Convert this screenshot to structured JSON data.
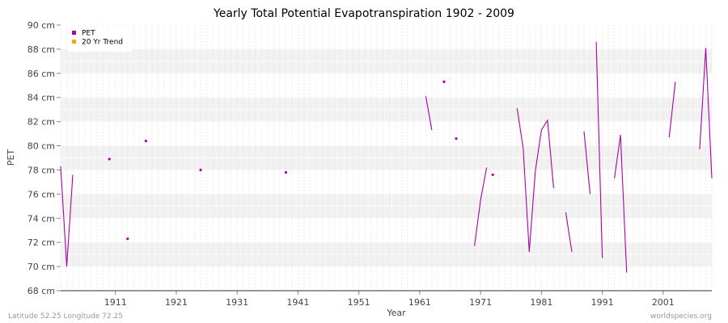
{
  "chart_data": {
    "type": "line",
    "title": "Yearly Total Potential Evapotranspiration 1902 - 2009",
    "xlabel": "Year",
    "ylabel": "PET",
    "xlim": [
      1902,
      2009
    ],
    "ylim": [
      68,
      90
    ],
    "x_ticks": [
      1911,
      1921,
      1931,
      1941,
      1951,
      1961,
      1971,
      1981,
      1991,
      2001
    ],
    "y_ticks": [
      {
        "value": 68,
        "label": "68 cm"
      },
      {
        "value": 70,
        "label": "70 cm"
      },
      {
        "value": 72,
        "label": "72 cm"
      },
      {
        "value": 74,
        "label": "74 cm"
      },
      {
        "value": 76,
        "label": "76 cm"
      },
      {
        "value": 78,
        "label": "78 cm"
      },
      {
        "value": 80,
        "label": "80 cm"
      },
      {
        "value": 82,
        "label": "82 cm"
      },
      {
        "value": 84,
        "label": "84 cm"
      },
      {
        "value": 86,
        "label": "86 cm"
      },
      {
        "value": 88,
        "label": "88 cm"
      },
      {
        "value": 90,
        "label": "90 cm"
      }
    ],
    "grid": true,
    "legend_position": "top-left",
    "series": [
      {
        "name": "PET",
        "color": "#aa00aa",
        "segments": [
          [
            [
              1902,
              78.3
            ],
            [
              1903,
              70.0
            ],
            [
              1904,
              77.6
            ]
          ],
          [
            [
              1962,
              84.1
            ],
            [
              1963,
              81.3
            ]
          ],
          [
            [
              1970,
              71.7
            ],
            [
              1971,
              75.5
            ],
            [
              1972,
              78.2
            ]
          ],
          [
            [
              1977,
              83.1
            ],
            [
              1978,
              79.8
            ],
            [
              1979,
              71.2
            ],
            [
              1980,
              77.9
            ],
            [
              1981,
              81.3
            ],
            [
              1982,
              82.1
            ],
            [
              1983,
              76.5
            ]
          ],
          [
            [
              1985,
              74.5
            ],
            [
              1986,
              71.2
            ]
          ],
          [
            [
              1988,
              81.2
            ],
            [
              1989,
              76.0
            ]
          ],
          [
            [
              1990,
              88.6
            ],
            [
              1991,
              70.7
            ]
          ],
          [
            [
              1993,
              77.3
            ],
            [
              1994,
              80.9
            ],
            [
              1995,
              69.5
            ]
          ],
          [
            [
              2002,
              80.7
            ],
            [
              2003,
              85.3
            ]
          ],
          [
            [
              2007,
              79.7
            ],
            [
              2008,
              88.1
            ],
            [
              2009,
              77.3
            ]
          ]
        ],
        "points": [
          [
            1910,
            78.9
          ],
          [
            1913,
            72.3
          ],
          [
            1916,
            80.4
          ],
          [
            1925,
            78.0
          ],
          [
            1939,
            77.8
          ],
          [
            1965,
            85.3
          ],
          [
            1967,
            80.6
          ],
          [
            1973,
            77.6
          ]
        ]
      },
      {
        "name": "20 Yr Trend",
        "color": "#ffa500",
        "segments": [],
        "points": []
      }
    ]
  },
  "footer": {
    "left": "Latitude 52.25 Longitude 72.25",
    "right": "worldspecies.org"
  }
}
